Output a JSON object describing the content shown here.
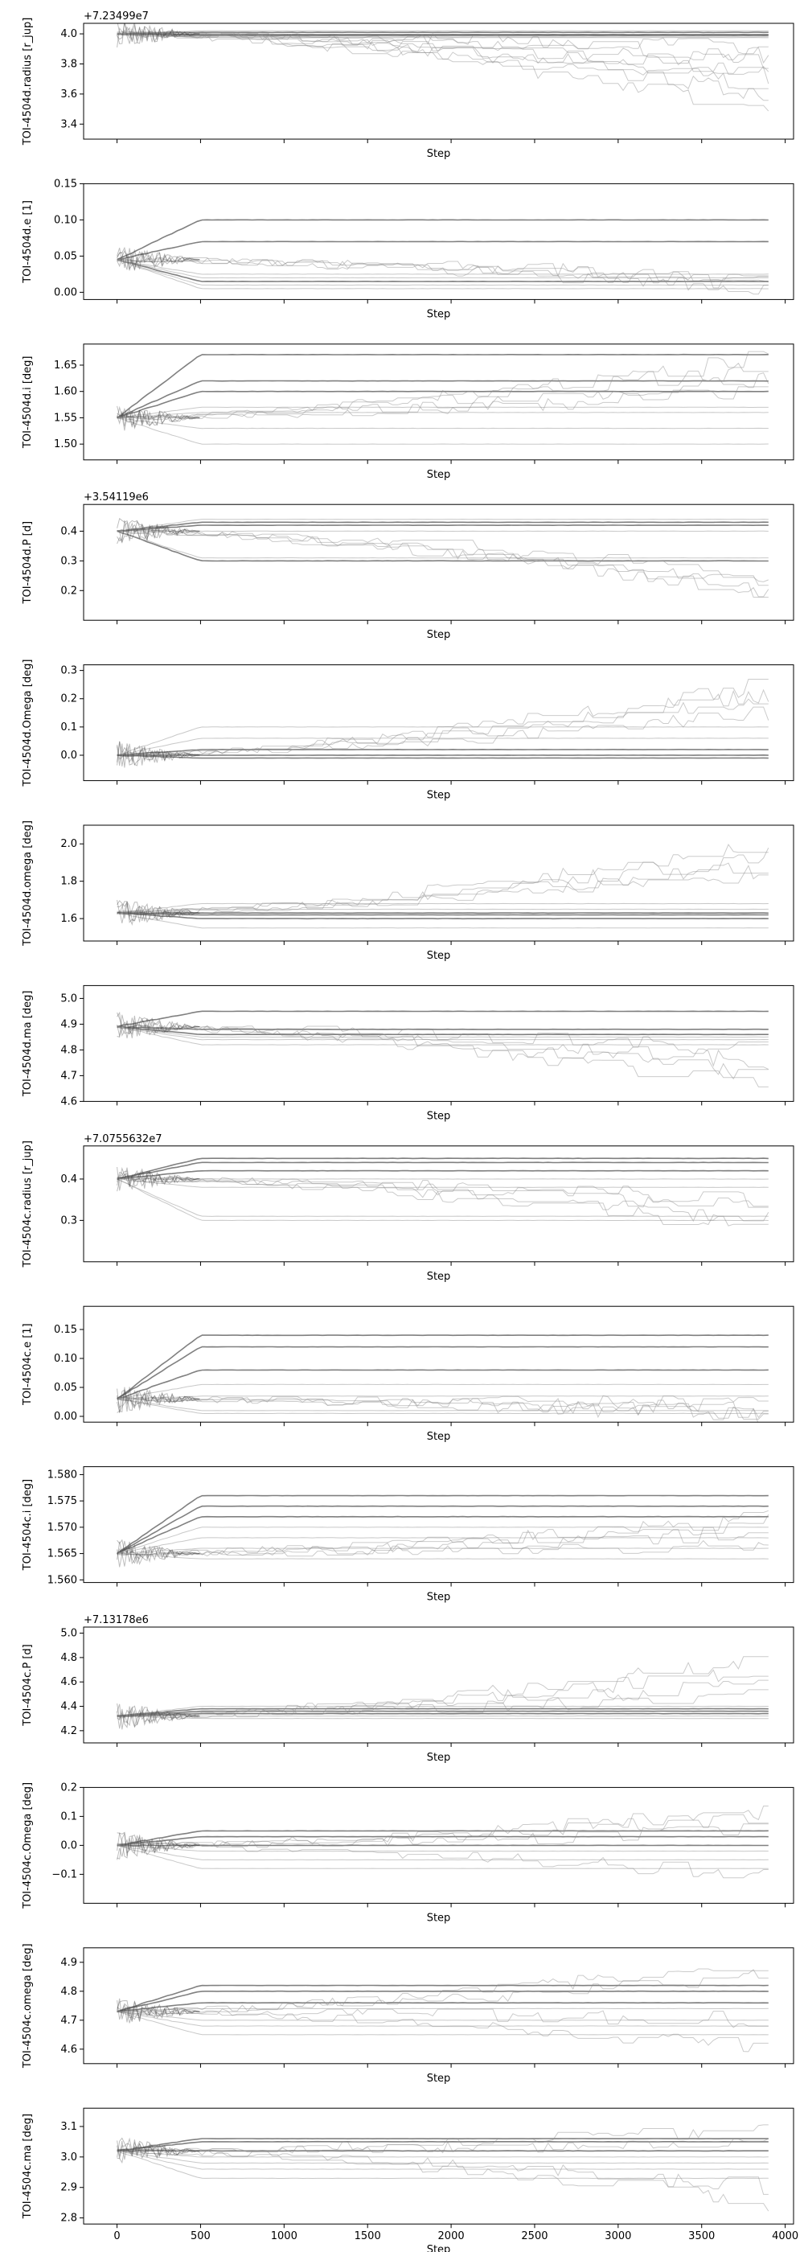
{
  "chart_data": {
    "type": "line",
    "description_note": "",
    "shared_x": {
      "xlabel": "Step",
      "xlim": [
        -200,
        4050
      ],
      "xticks": [
        0,
        500,
        1000,
        1500,
        2000,
        2500,
        3000,
        3500,
        4000
      ],
      "xticklabels": [
        "0",
        "500",
        "1000",
        "1500",
        "2000",
        "2500",
        "3000",
        "3500",
        "4000"
      ],
      "n_steps": 3900
    },
    "panels": [
      {
        "ylabel": "TOI-4504d.radius [r_jup]",
        "offset": "+7.23499e7",
        "ylim": [
          3.3,
          4.07
        ],
        "yticks": [
          3.4,
          3.6,
          3.8,
          4.0
        ],
        "yticklabels": [
          "3.4",
          "3.6",
          "3.8",
          "4.0"
        ],
        "start": 4.0,
        "levels": [
          4.01,
          3.995,
          3.99,
          3.98,
          3.975,
          4.02
        ],
        "wander_end": [
          3.85,
          3.7,
          3.6,
          3.5,
          3.8,
          3.9,
          3.75,
          3.65
        ]
      },
      {
        "ylabel": "TOI-4504d.e [1]",
        "offset": "",
        "ylim": [
          -0.01,
          0.15
        ],
        "yticks": [
          0.0,
          0.05,
          0.1,
          0.15
        ],
        "yticklabels": [
          "0.00",
          "0.05",
          "0.10",
          "0.15"
        ],
        "start": 0.045,
        "levels": [
          0.1,
          0.07,
          0.015,
          0.01,
          0.005,
          0.02,
          0.025
        ],
        "wander_end": [
          0.01,
          0.02,
          0.015,
          0.005
        ]
      },
      {
        "ylabel": "TOI-4504d.i [deg]",
        "offset": "",
        "ylim": [
          1.47,
          1.69
        ],
        "yticks": [
          1.5,
          1.55,
          1.6,
          1.65
        ],
        "yticklabels": [
          "1.50",
          "1.55",
          "1.60",
          "1.65"
        ],
        "start": 1.55,
        "levels": [
          1.67,
          1.62,
          1.6,
          1.57,
          1.56,
          1.53,
          1.5
        ],
        "wander_end": [
          1.67,
          1.65,
          1.6,
          1.62
        ]
      },
      {
        "ylabel": "TOI-4504d.P [d]",
        "offset": "+3.54119e6",
        "ylim": [
          0.1,
          0.49
        ],
        "yticks": [
          0.2,
          0.3,
          0.4
        ],
        "yticklabels": [
          "0.2",
          "0.3",
          "0.4"
        ],
        "start": 0.4,
        "levels": [
          0.43,
          0.42,
          0.3,
          0.31,
          0.4,
          0.44
        ],
        "wander_end": [
          0.2,
          0.25,
          0.22,
          0.18
        ]
      },
      {
        "ylabel": "TOI-4504d.Omega [deg]",
        "offset": "",
        "ylim": [
          -0.09,
          0.32
        ],
        "yticks": [
          0.0,
          0.1,
          0.2,
          0.3
        ],
        "yticklabels": [
          "0.0",
          "0.1",
          "0.2",
          "0.3"
        ],
        "start": 0.0,
        "levels": [
          0.0,
          -0.01,
          0.02,
          0.06,
          0.1
        ],
        "wander_end": [
          0.2,
          0.25,
          0.15,
          0.22
        ]
      },
      {
        "ylabel": "TOI-4504d.omega [deg]",
        "offset": "",
        "ylim": [
          1.48,
          2.1
        ],
        "yticks": [
          1.6,
          1.8,
          2.0
        ],
        "yticklabels": [
          "1.6",
          "1.8",
          "2.0"
        ],
        "start": 1.63,
        "levels": [
          1.63,
          1.62,
          1.6,
          1.65,
          1.68,
          1.55
        ],
        "wander_end": [
          1.9,
          2.0,
          1.85,
          1.95
        ]
      },
      {
        "ylabel": "TOI-4504d.ma [deg]",
        "offset": "",
        "ylim": [
          4.6,
          5.05
        ],
        "yticks": [
          4.6,
          4.7,
          4.8,
          4.9,
          5.0
        ],
        "yticklabels": [
          "4.6",
          "4.7",
          "4.8",
          "4.9",
          "5.0"
        ],
        "start": 4.89,
        "levels": [
          4.95,
          4.88,
          4.86,
          4.85,
          4.84,
          4.82
        ],
        "wander_end": [
          4.75,
          4.7,
          4.8,
          4.65
        ]
      },
      {
        "ylabel": "TOI-4504c.radius [r_jup]",
        "offset": "+7.0755632e7",
        "ylim": [
          0.2,
          0.48
        ],
        "yticks": [
          0.3,
          0.4
        ],
        "yticklabels": [
          "0.3",
          "0.4"
        ],
        "start": 0.4,
        "levels": [
          0.45,
          0.44,
          0.42,
          0.4,
          0.38,
          0.31,
          0.3
        ],
        "wander_end": [
          0.3,
          0.33,
          0.28,
          0.35
        ]
      },
      {
        "ylabel": "TOI-4504c.e [1]",
        "offset": "",
        "ylim": [
          -0.01,
          0.19
        ],
        "yticks": [
          0.0,
          0.05,
          0.1,
          0.15
        ],
        "yticklabels": [
          "0.00",
          "0.05",
          "0.10",
          "0.15"
        ],
        "start": 0.03,
        "levels": [
          0.14,
          0.12,
          0.08,
          0.055,
          0.035,
          0.01,
          0.005
        ],
        "wander_end": [
          0.005,
          0.01,
          0.0,
          0.02
        ]
      },
      {
        "ylabel": "TOI-4504c.i [deg]",
        "offset": "",
        "ylim": [
          1.5595,
          1.5815
        ],
        "yticks": [
          1.56,
          1.565,
          1.57,
          1.575,
          1.58
        ],
        "yticklabels": [
          "1.560",
          "1.565",
          "1.570",
          "1.575",
          "1.580"
        ],
        "start": 1.565,
        "levels": [
          1.576,
          1.574,
          1.572,
          1.57,
          1.568,
          1.566,
          1.564
        ],
        "wander_end": [
          1.572,
          1.569,
          1.571,
          1.567
        ]
      },
      {
        "ylabel": "TOI-4504c.P [d]",
        "offset": "+7.13178e6",
        "ylim": [
          4.1,
          5.05
        ],
        "yticks": [
          4.2,
          4.4,
          4.6,
          4.8,
          5.0
        ],
        "yticklabels": [
          "4.2",
          "4.4",
          "4.6",
          "4.8",
          "5.0"
        ],
        "start": 4.32,
        "levels": [
          4.38,
          4.36,
          4.34,
          4.32,
          4.3,
          4.4
        ],
        "wander_end": [
          4.6,
          4.8,
          4.5,
          4.7
        ]
      },
      {
        "ylabel": "TOI-4504c.Omega [deg]",
        "offset": "",
        "ylim": [
          -0.2,
          0.2
        ],
        "yticks": [
          -0.1,
          0.0,
          0.1,
          0.2
        ],
        "yticklabels": [
          "−0.1",
          "0.0",
          "0.1",
          "0.2"
        ],
        "start": 0.0,
        "levels": [
          0.05,
          0.03,
          0.0,
          -0.02,
          -0.05,
          -0.08
        ],
        "wander_end": [
          0.1,
          0.12,
          -0.1,
          0.05
        ]
      },
      {
        "ylabel": "TOI-4504c.omega [deg]",
        "offset": "",
        "ylim": [
          4.55,
          4.95
        ],
        "yticks": [
          4.6,
          4.7,
          4.8,
          4.9
        ],
        "yticklabels": [
          "4.6",
          "4.7",
          "4.8",
          "4.9"
        ],
        "start": 4.73,
        "levels": [
          4.82,
          4.8,
          4.76,
          4.74,
          4.7,
          4.68,
          4.65
        ],
        "wander_end": [
          4.85,
          4.6,
          4.7,
          4.9
        ]
      },
      {
        "ylabel": "TOI-4504c.ma [deg]",
        "offset": "",
        "ylim": [
          2.78,
          3.16
        ],
        "yticks": [
          2.8,
          2.9,
          3.0,
          3.1
        ],
        "yticklabels": [
          "2.8",
          "2.9",
          "3.0",
          "3.1"
        ],
        "start": 3.02,
        "levels": [
          3.06,
          3.05,
          3.02,
          3.0,
          2.98,
          2.96,
          2.93
        ],
        "wander_end": [
          3.1,
          2.9,
          3.05,
          2.85
        ]
      }
    ]
  }
}
